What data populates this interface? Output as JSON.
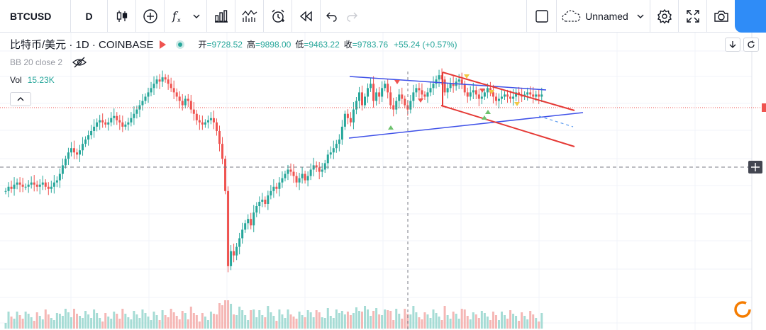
{
  "toolbar": {
    "symbol": "BTCUSD",
    "interval": "D",
    "layout_name": "Unnamed",
    "icons": [
      "candles-icon",
      "add-compare-icon",
      "indicators-icon",
      "chevron-down-icon",
      "financials-icon",
      "templates-icon",
      "alert-icon",
      "replay-icon",
      "undo-icon",
      "redo-icon",
      "square-icon",
      "cloud-icon",
      "gear-icon",
      "fullscreen-icon",
      "camera-icon"
    ]
  },
  "legend": {
    "title": "比特币/美元 · 1D · COINBASE",
    "open_label": "开",
    "open_value": "=9728.52",
    "high_label": "高",
    "high_value": "=9898.00",
    "low_label": "低",
    "low_value": "=9463.22",
    "close_label": "收",
    "close_value": "=9783.76",
    "change": "+55.24 (+0.57%)",
    "bb_label": "BB 20 close 2",
    "vol_label": "Vol",
    "vol_value": "15.23K"
  },
  "colors": {
    "up": "#26a69a",
    "down": "#ef5350",
    "trendline_blue": "#3f51e8",
    "trendline_red": "#e53935",
    "accent": "#2f8cf7",
    "logo_orange": "#f57c00"
  },
  "chart_data": {
    "type": "candlestick",
    "symbol": "BTCUSD",
    "timeframe": "1D",
    "exchange": "COINBASE",
    "last_bar": {
      "open": 9728.52,
      "high": 9898.0,
      "low": 9463.22,
      "close": 9783.76,
      "change": 55.24,
      "change_pct": 0.57
    },
    "volume_last": "15.23K",
    "indicators": [
      "BB 20 close 2",
      "Vol"
    ],
    "grid": true,
    "close_norm": [
      0.4,
      0.42,
      0.41,
      0.43,
      0.44,
      0.43,
      0.42,
      0.42,
      0.43,
      0.44,
      0.43,
      0.42,
      0.43,
      0.44,
      0.42,
      0.41,
      0.42,
      0.44,
      0.45,
      0.48,
      0.52,
      0.55,
      0.58,
      0.6,
      0.58,
      0.57,
      0.59,
      0.62,
      0.64,
      0.66,
      0.68,
      0.7,
      0.72,
      0.73,
      0.72,
      0.71,
      0.72,
      0.74,
      0.75,
      0.73,
      0.72,
      0.7,
      0.71,
      0.72,
      0.74,
      0.76,
      0.78,
      0.8,
      0.82,
      0.84,
      0.86,
      0.88,
      0.9,
      0.92,
      0.91,
      0.93,
      0.92,
      0.9,
      0.88,
      0.86,
      0.84,
      0.82,
      0.8,
      0.83,
      0.82,
      0.78,
      0.76,
      0.73,
      0.72,
      0.71,
      0.72,
      0.73,
      0.74,
      0.72,
      0.68,
      0.62,
      0.55,
      0.4,
      0.05,
      0.12,
      0.1,
      0.14,
      0.18,
      0.22,
      0.25,
      0.27,
      0.24,
      0.3,
      0.33,
      0.35,
      0.36,
      0.34,
      0.38,
      0.4,
      0.42,
      0.41,
      0.44,
      0.46,
      0.48,
      0.5,
      0.49,
      0.47,
      0.44,
      0.46,
      0.48,
      0.45,
      0.47,
      0.5,
      0.52,
      0.51,
      0.49,
      0.5,
      0.53,
      0.57,
      0.58,
      0.6,
      0.62,
      0.64,
      0.7,
      0.76,
      0.74,
      0.72,
      0.78,
      0.82,
      0.86,
      0.8,
      0.84,
      0.88,
      0.9,
      0.82,
      0.86,
      0.84,
      0.88,
      0.9,
      0.86,
      0.8,
      0.78,
      0.82,
      0.85,
      0.83,
      0.8,
      0.78,
      0.82,
      0.86,
      0.88,
      0.87,
      0.85,
      0.84,
      0.86,
      0.88,
      0.9,
      0.92,
      0.94,
      0.92,
      0.86,
      0.88,
      0.9,
      0.89,
      0.91,
      0.92,
      0.9,
      0.86,
      0.84,
      0.86,
      0.87,
      0.85,
      0.83,
      0.84,
      0.86,
      0.88,
      0.86,
      0.84,
      0.82,
      0.83,
      0.84,
      0.85,
      0.84,
      0.83,
      0.84,
      0.86,
      0.85,
      0.84,
      0.85,
      0.86,
      0.85,
      0.84,
      0.85,
      0.84,
      0.85
    ]
  }
}
